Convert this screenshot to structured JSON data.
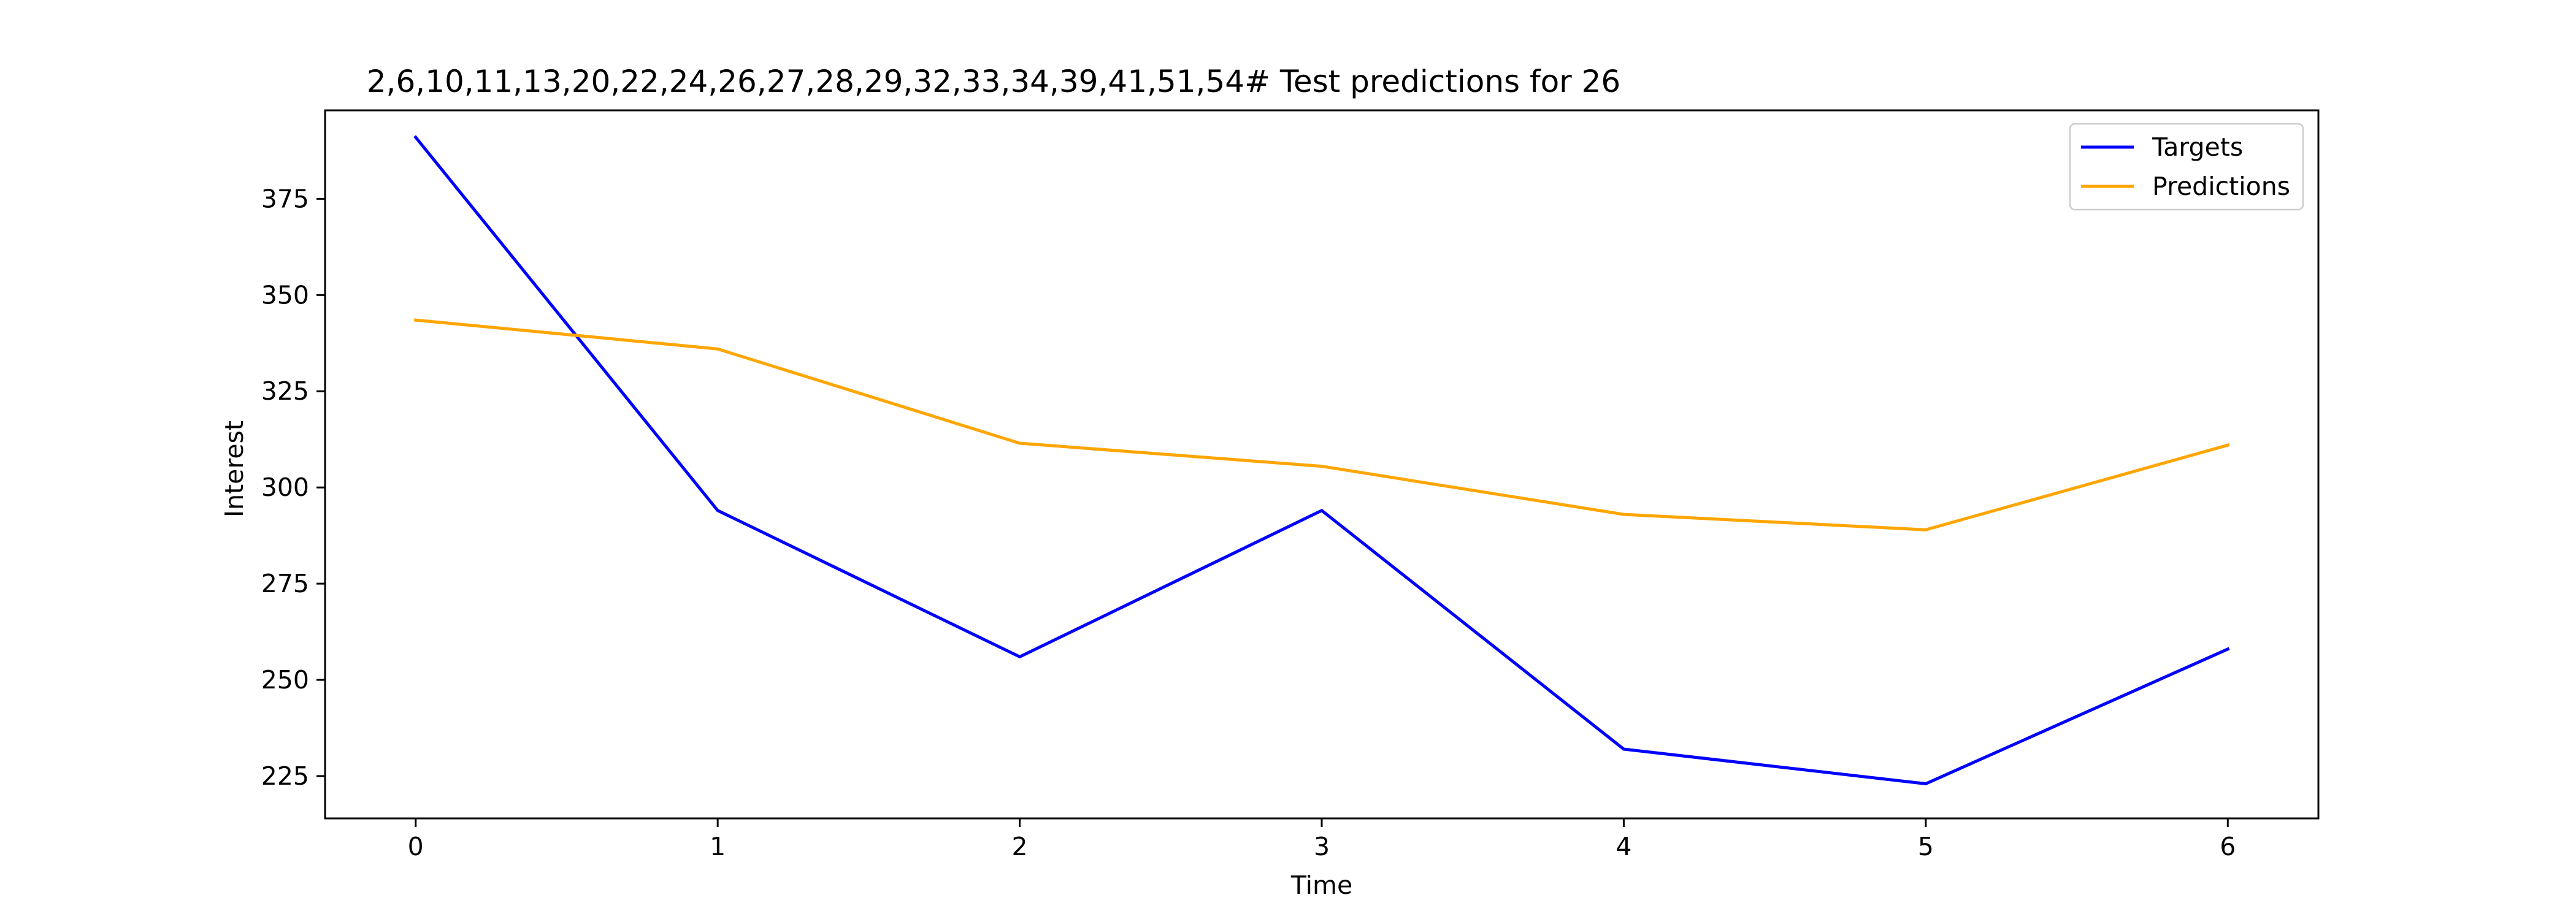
{
  "chart_data": {
    "type": "line",
    "title": "2,6,10,11,13,20,22,24,26,27,28,29,32,33,34,39,41,51,54# Test predictions for 26",
    "xlabel": "Time",
    "ylabel": "Interest",
    "x": [
      0,
      1,
      2,
      3,
      4,
      5,
      6
    ],
    "xlim": [
      -0.3,
      6.3
    ],
    "ylim": [
      214,
      398
    ],
    "xticks": [
      0,
      1,
      2,
      3,
      4,
      5,
      6
    ],
    "yticks": [
      225,
      250,
      275,
      300,
      325,
      350,
      375
    ],
    "grid": false,
    "legend_position": "upper right",
    "series": [
      {
        "name": "Targets",
        "color": "#0000ff",
        "values": [
          391,
          294,
          256,
          294,
          232,
          223,
          258
        ]
      },
      {
        "name": "Predictions",
        "color": "#ffa500",
        "values": [
          343.5,
          336,
          311.5,
          305.5,
          293,
          289,
          311
        ]
      }
    ]
  }
}
